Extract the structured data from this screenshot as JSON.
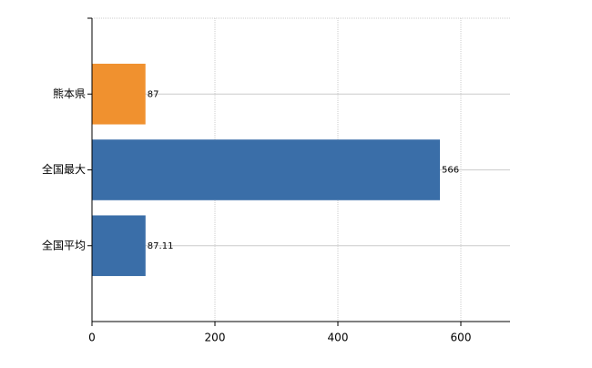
{
  "chart_data": {
    "type": "bar",
    "orientation": "horizontal",
    "categories": [
      "熊本県",
      "全国最大",
      "全国平均"
    ],
    "values": [
      87,
      566,
      87.11
    ],
    "colors": [
      "#f0912f",
      "#3a6ea8",
      "#3a6ea8"
    ],
    "xlim": [
      0,
      680
    ],
    "xticks": [
      0,
      200,
      400,
      600
    ],
    "grid": true
  }
}
